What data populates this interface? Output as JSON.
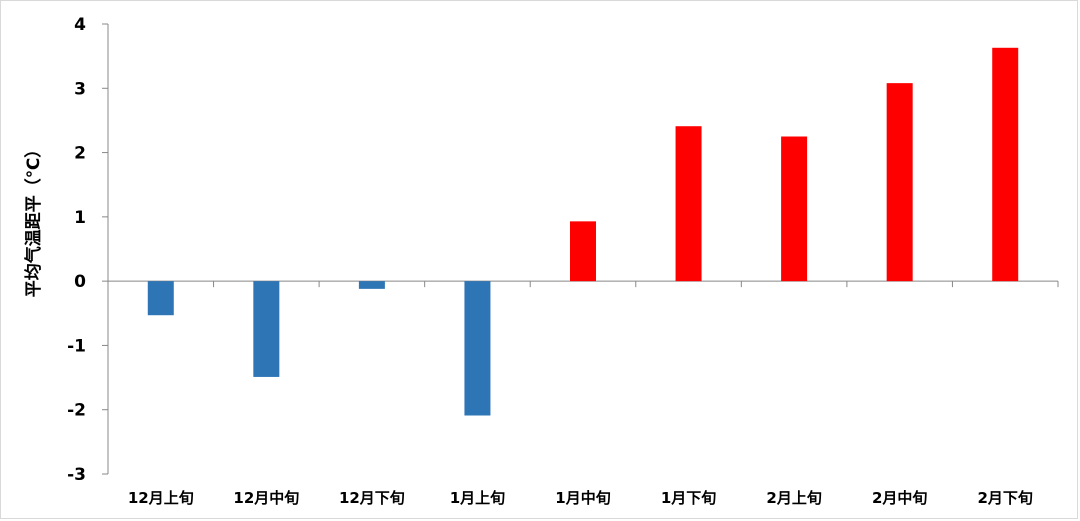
{
  "chart_data": {
    "type": "bar",
    "title": "",
    "xlabel": "",
    "ylabel": "平均气温距平（℃）",
    "ylim": [
      -3,
      4
    ],
    "yticks": [
      -3,
      -2,
      -1,
      0,
      1,
      2,
      3,
      4
    ],
    "categories": [
      "12月上旬",
      "12月中旬",
      "12月下旬",
      "1月上旬",
      "1月中旬",
      "1月下旬",
      "2月上旬",
      "2月中旬",
      "2月下旬"
    ],
    "values": [
      -0.53,
      -1.49,
      -0.12,
      -2.09,
      0.93,
      2.41,
      2.25,
      3.08,
      3.63
    ],
    "negative_color": "#2e75b6",
    "positive_color": "#ff0000",
    "grid": false,
    "legend": "none"
  }
}
